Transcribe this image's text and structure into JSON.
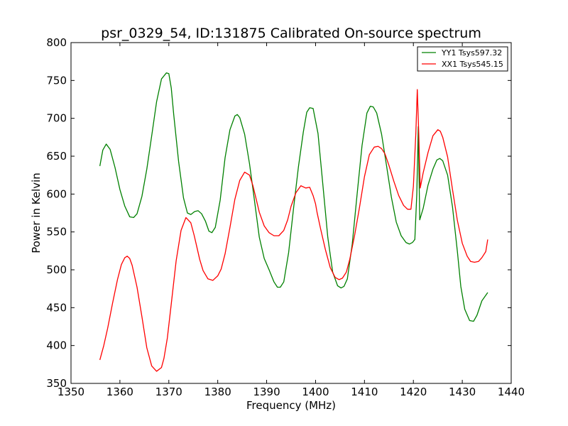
{
  "chart_data": {
    "type": "line",
    "title": "psr_0329_54, ID:131875 Calibrated On-source spectrum",
    "xlabel": "Frequency (MHz)",
    "ylabel": "Power in Kelvin",
    "xlim": [
      1350,
      1440
    ],
    "ylim": [
      350,
      800
    ],
    "xticks": [
      1350,
      1360,
      1370,
      1380,
      1390,
      1400,
      1410,
      1420,
      1430,
      1440
    ],
    "yticks": [
      350,
      400,
      450,
      500,
      550,
      600,
      650,
      700,
      750,
      800
    ],
    "grid": false,
    "legend_position": "top-right",
    "series": [
      {
        "name": "YY1 Tsys597.32",
        "color": "#008000",
        "x": [
          1355.9,
          1356.5,
          1357.2,
          1358.0,
          1359.0,
          1360.0,
          1361.0,
          1362.0,
          1362.8,
          1363.5,
          1364.5,
          1365.5,
          1366.5,
          1367.5,
          1368.5,
          1369.5,
          1370.0,
          1370.5,
          1371.0,
          1372.0,
          1373.0,
          1373.8,
          1374.5,
          1375.3,
          1376.0,
          1376.7,
          1377.5,
          1378.2,
          1378.8,
          1379.5,
          1380.5,
          1381.5,
          1382.5,
          1383.5,
          1384.0,
          1384.5,
          1385.5,
          1386.5,
          1387.5,
          1388.5,
          1389.5,
          1390.5,
          1391.5,
          1392.2,
          1392.8,
          1393.5,
          1394.5,
          1395.5,
          1396.5,
          1397.5,
          1398.2,
          1398.8,
          1399.5,
          1400.5,
          1401.5,
          1402.5,
          1403.5,
          1404.5,
          1405.2,
          1405.8,
          1406.5,
          1407.5,
          1408.5,
          1409.5,
          1410.5,
          1411.2,
          1411.8,
          1412.5,
          1413.5,
          1414.5,
          1415.5,
          1416.5,
          1417.5,
          1418.5,
          1419.2,
          1419.8,
          1420.3,
          1420.7,
          1421.0,
          1421.3,
          1422.0,
          1423.0,
          1424.0,
          1424.8,
          1425.4,
          1426.0,
          1427.0,
          1428.0,
          1429.0,
          1429.7,
          1430.5,
          1431.5,
          1432.3,
          1433.0,
          1434.0,
          1435.2
        ],
        "y": [
          637,
          658,
          666,
          659,
          635,
          606,
          584,
          570,
          569,
          574,
          597,
          633,
          677,
          722,
          752,
          760,
          759,
          740,
          705,
          643,
          595,
          575,
          573,
          577,
          578,
          574,
          564,
          551,
          549,
          556,
          592,
          648,
          685,
          703,
          705,
          701,
          679,
          640,
          592,
          543,
          515,
          500,
          484,
          477,
          477,
          484,
          523,
          581,
          636,
          682,
          708,
          714,
          713,
          680,
          612,
          543,
          497,
          479,
          476,
          478,
          488,
          534,
          600,
          664,
          707,
          716,
          715,
          707,
          679,
          638,
          596,
          563,
          545,
          536,
          534,
          536,
          540,
          600,
          689,
          566,
          581,
          612,
          633,
          645,
          647,
          644,
          625,
          583,
          524,
          478,
          448,
          433,
          432,
          440,
          459,
          470
        ]
      },
      {
        "name": "XX1 Tsys545.15",
        "color": "#ff0000",
        "x": [
          1355.9,
          1356.7,
          1357.5,
          1358.5,
          1359.5,
          1360.3,
          1361.0,
          1361.5,
          1362.0,
          1362.5,
          1363.5,
          1364.5,
          1365.5,
          1366.5,
          1367.5,
          1368.5,
          1369.0,
          1369.7,
          1370.5,
          1371.5,
          1372.5,
          1373.5,
          1374.5,
          1375.2,
          1375.7,
          1376.3,
          1377.0,
          1378.0,
          1379.0,
          1380.0,
          1380.7,
          1381.5,
          1382.5,
          1383.5,
          1384.5,
          1385.5,
          1386.5,
          1387.2,
          1387.8,
          1388.5,
          1389.5,
          1390.5,
          1391.5,
          1392.5,
          1393.5,
          1394.3,
          1395.0,
          1396.0,
          1397.0,
          1398.0,
          1398.8,
          1399.5,
          1400.0,
          1400.3,
          1401.0,
          1402.0,
          1403.0,
          1404.0,
          1404.8,
          1405.5,
          1406.3,
          1407.0,
          1408.0,
          1409.0,
          1410.0,
          1411.0,
          1412.0,
          1412.8,
          1413.5,
          1414.2,
          1415.0,
          1416.0,
          1417.0,
          1418.0,
          1418.8,
          1419.5,
          1420.0,
          1420.5,
          1420.8,
          1421.1,
          1421.4,
          1422.0,
          1423.0,
          1424.0,
          1425.0,
          1425.5,
          1426.0,
          1427.0,
          1428.0,
          1429.0,
          1430.0,
          1431.0,
          1431.7,
          1432.5,
          1433.3,
          1434.0,
          1434.8,
          1435.2
        ],
        "y": [
          381,
          400,
          423,
          456,
          487,
          507,
          516,
          518,
          515,
          506,
          477,
          438,
          397,
          373,
          366,
          371,
          383,
          410,
          455,
          512,
          552,
          569,
          562,
          545,
          531,
          514,
          499,
          488,
          486,
          492,
          501,
          521,
          556,
          593,
          618,
          629,
          625,
          611,
          595,
          576,
          558,
          549,
          545,
          545,
          552,
          566,
          584,
          602,
          611,
          608,
          609,
          598,
          587,
          576,
          555,
          527,
          503,
          490,
          487,
          489,
          497,
          514,
          546,
          583,
          623,
          652,
          662,
          663,
          660,
          653,
          638,
          617,
          598,
          585,
          580,
          580,
          610,
          680,
          738,
          680,
          608,
          628,
          655,
          677,
          685,
          683,
          675,
          649,
          606,
          565,
          535,
          518,
          511,
          510,
          511,
          516,
          524,
          540
        ]
      }
    ]
  }
}
